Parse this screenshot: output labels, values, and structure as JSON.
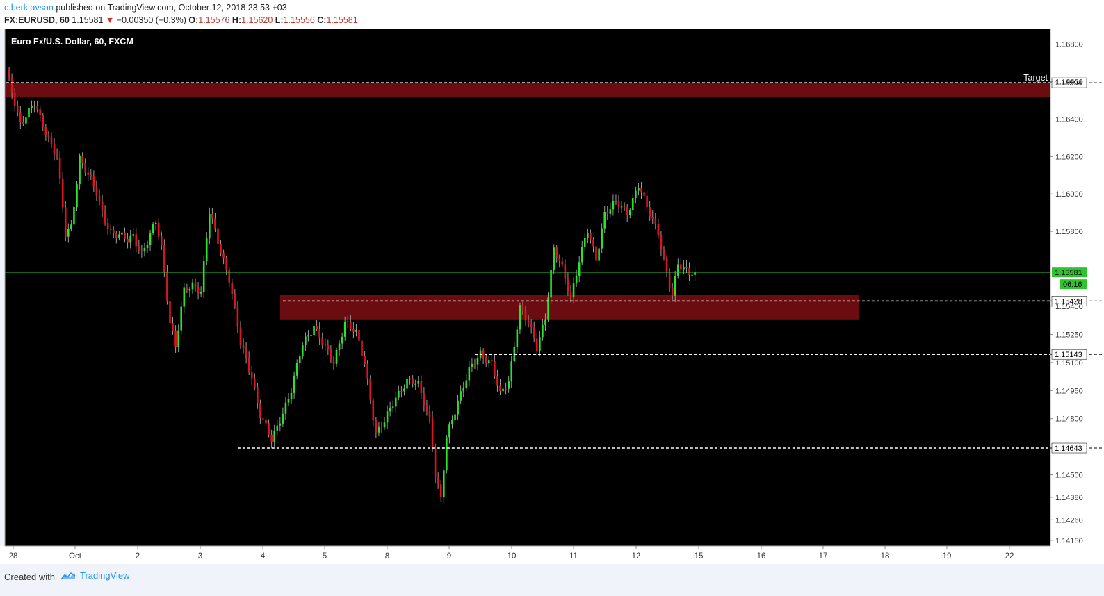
{
  "header": {
    "author": "c.berktavsan",
    "published_text": "published on TradingView.com, October 12, 2018 23:53 +03",
    "symbol": "FX:EURUSD, 60",
    "last_price": "1.15581",
    "change_arrow": "▼",
    "change": "−0.00350 (−0.3%)",
    "open_label": "O:",
    "open": "1.15576",
    "high_label": "H:",
    "high": "1.15620",
    "low_label": "L:",
    "low": "1.15556",
    "close_label": "C:",
    "close": "1.15581"
  },
  "chart_data": {
    "type": "candlestick",
    "title": "Euro Fx/U.S. Dollar, 60, FXCM",
    "x_tick_labels": [
      "28",
      "Oct",
      "2",
      "3",
      "4",
      "5",
      "8",
      "9",
      "10",
      "11",
      "12",
      "15",
      "16",
      "17",
      "18",
      "19",
      "22"
    ],
    "y_tick_labels": [
      "1.16800",
      "1.16600",
      "1.16400",
      "1.16200",
      "1.16000",
      "1.15800",
      "1.15400",
      "1.15250",
      "1.15100",
      "1.14950",
      "1.14800",
      "1.14500",
      "1.14380",
      "1.14260",
      "1.14150"
    ],
    "ylim": [
      1.1412,
      1.1688
    ],
    "price_anchors": [
      {
        "x": 0,
        "price": 1.1665
      },
      {
        "x": 5,
        "price": 1.1638
      },
      {
        "x": 10,
        "price": 1.1648
      },
      {
        "x": 12,
        "price": 1.164
      },
      {
        "x": 18,
        "price": 1.162
      },
      {
        "x": 21,
        "price": 1.1578
      },
      {
        "x": 23,
        "price": 1.1582
      },
      {
        "x": 26,
        "price": 1.162
      },
      {
        "x": 32,
        "price": 1.16
      },
      {
        "x": 34,
        "price": 1.159
      },
      {
        "x": 37,
        "price": 1.158
      },
      {
        "x": 43,
        "price": 1.1575
      },
      {
        "x": 45,
        "price": 1.1578
      },
      {
        "x": 48,
        "price": 1.1568
      },
      {
        "x": 50,
        "price": 1.1574
      },
      {
        "x": 53,
        "price": 1.1585
      },
      {
        "x": 55,
        "price": 1.1572
      },
      {
        "x": 58,
        "price": 1.1532
      },
      {
        "x": 60,
        "price": 1.1518
      },
      {
        "x": 63,
        "price": 1.1548
      },
      {
        "x": 66,
        "price": 1.1552
      },
      {
        "x": 69,
        "price": 1.1548
      },
      {
        "x": 72,
        "price": 1.159
      },
      {
        "x": 76,
        "price": 1.157
      },
      {
        "x": 79,
        "price": 1.1555
      },
      {
        "x": 83,
        "price": 1.152
      },
      {
        "x": 87,
        "price": 1.1503
      },
      {
        "x": 90,
        "price": 1.1482
      },
      {
        "x": 94,
        "price": 1.1468
      },
      {
        "x": 97,
        "price": 1.148
      },
      {
        "x": 101,
        "price": 1.1495
      },
      {
        "x": 105,
        "price": 1.152
      },
      {
        "x": 109,
        "price": 1.153
      },
      {
        "x": 112,
        "price": 1.152
      },
      {
        "x": 116,
        "price": 1.151
      },
      {
        "x": 120,
        "price": 1.1532
      },
      {
        "x": 124,
        "price": 1.1525
      },
      {
        "x": 127,
        "price": 1.151
      },
      {
        "x": 131,
        "price": 1.1472
      },
      {
        "x": 134,
        "price": 1.1478
      },
      {
        "x": 138,
        "price": 1.1492
      },
      {
        "x": 142,
        "price": 1.15
      },
      {
        "x": 146,
        "price": 1.1498
      },
      {
        "x": 150,
        "price": 1.148
      },
      {
        "x": 152,
        "price": 1.145
      },
      {
        "x": 154,
        "price": 1.1436
      },
      {
        "x": 156,
        "price": 1.147
      },
      {
        "x": 160,
        "price": 1.149
      },
      {
        "x": 164,
        "price": 1.1505
      },
      {
        "x": 168,
        "price": 1.1515
      },
      {
        "x": 172,
        "price": 1.151
      },
      {
        "x": 175,
        "price": 1.1492
      },
      {
        "x": 178,
        "price": 1.15
      },
      {
        "x": 182,
        "price": 1.154
      },
      {
        "x": 185,
        "price": 1.153
      },
      {
        "x": 188,
        "price": 1.1518
      },
      {
        "x": 191,
        "price": 1.1535
      },
      {
        "x": 194,
        "price": 1.157
      },
      {
        "x": 197,
        "price": 1.156
      },
      {
        "x": 200,
        "price": 1.1545
      },
      {
        "x": 203,
        "price": 1.1565
      },
      {
        "x": 206,
        "price": 1.158
      },
      {
        "x": 209,
        "price": 1.1565
      },
      {
        "x": 212,
        "price": 1.159
      },
      {
        "x": 216,
        "price": 1.1595
      },
      {
        "x": 220,
        "price": 1.159
      },
      {
        "x": 224,
        "price": 1.1605
      },
      {
        "x": 227,
        "price": 1.1592
      },
      {
        "x": 231,
        "price": 1.158
      },
      {
        "x": 234,
        "price": 1.1558
      },
      {
        "x": 236,
        "price": 1.1545
      },
      {
        "x": 238,
        "price": 1.1562
      },
      {
        "x": 242,
        "price": 1.1559
      },
      {
        "x": 244,
        "price": 1.15581
      }
    ],
    "zones": [
      {
        "top": 1.16594,
        "bottom": 1.1652,
        "from_x": 0,
        "to": "right_edge"
      },
      {
        "top": 1.1546,
        "bottom": 1.1533,
        "from_x": 97,
        "to_x": 302
      }
    ],
    "levels": [
      {
        "price": 1.16594,
        "label": "1.16594",
        "from_x": 0,
        "note": "Target"
      },
      {
        "price": 1.15428,
        "label": "1.15428",
        "from_x": 98
      },
      {
        "price": 1.15143,
        "label": "1.15143",
        "from_x": 166
      },
      {
        "price": 1.14643,
        "label": "1.14643",
        "from_x": 82
      }
    ],
    "last_price_label": "1.15581",
    "countdown": "06:16",
    "colors": {
      "background": "#000000",
      "up": "#26e626",
      "down": "#e0141e",
      "wick": "#9e9e9e",
      "zone": "#6b0d10",
      "level": "#ffffff",
      "last_price": "#2ec42e",
      "axis_bg": "#ffffff"
    }
  },
  "footer": {
    "created_with": "Created with",
    "brand": "TradingView"
  }
}
